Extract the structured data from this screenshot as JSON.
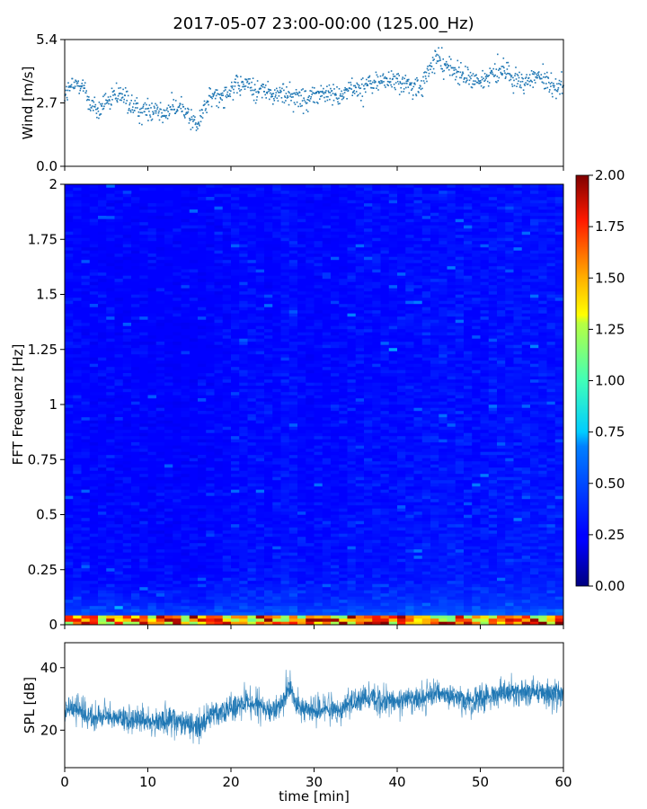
{
  "chart_data": {
    "title": "2017-05-07 23:00-00:00 (125.00_Hz)",
    "panels": [
      {
        "id": "wind",
        "type": "scatter",
        "ylabel": "Wind [m/s]",
        "ylim": [
          0.0,
          5.4
        ],
        "yticks": [
          "0.0",
          "2.7",
          "5.4"
        ],
        "xlim": [
          0,
          60
        ],
        "color": "#1f77b4",
        "trend": {
          "t": [
            0,
            1,
            2,
            3,
            4,
            5,
            6,
            7,
            8,
            9,
            10,
            11,
            12,
            13,
            14,
            15,
            16,
            17,
            18,
            19,
            20,
            21,
            22,
            23,
            24,
            25,
            26,
            27,
            28,
            29,
            30,
            31,
            32,
            33,
            34,
            35,
            36,
            37,
            38,
            39,
            40,
            41,
            42,
            43,
            44,
            45,
            46,
            47,
            48,
            49,
            50,
            51,
            52,
            53,
            54,
            55,
            56,
            57,
            58,
            59,
            60
          ],
          "v": [
            3.1,
            3.4,
            3.6,
            2.7,
            2.3,
            2.8,
            2.9,
            3.0,
            2.6,
            2.3,
            2.4,
            2.5,
            2.3,
            2.4,
            2.6,
            2.1,
            1.7,
            2.7,
            3.0,
            3.1,
            3.3,
            3.4,
            3.5,
            3.2,
            3.3,
            3.0,
            3.1,
            3.0,
            3.0,
            2.9,
            3.0,
            3.1,
            3.1,
            3.0,
            3.2,
            3.3,
            3.4,
            3.5,
            3.6,
            3.7,
            3.6,
            3.5,
            3.3,
            3.4,
            4.2,
            4.6,
            4.3,
            4.0,
            3.9,
            3.7,
            3.6,
            3.8,
            4.0,
            4.1,
            3.8,
            3.6,
            3.7,
            3.9,
            3.5,
            3.4,
            3.6
          ]
        }
      },
      {
        "id": "spectrogram",
        "type": "heatmap",
        "ylabel": "FFT Frequenz [Hz]",
        "ylim": [
          0,
          2
        ],
        "yticks": [
          "0",
          "0.25",
          "0.5",
          "0.75",
          "1",
          "1.25",
          "1.5",
          "1.75",
          "2"
        ],
        "xlim": [
          0,
          60
        ],
        "colormap": "jet",
        "colorbar": {
          "vmin": 0.0,
          "vmax": 2.0,
          "ticks": [
            "0.00",
            "0.25",
            "0.50",
            "0.75",
            "1.00",
            "1.25",
            "1.50",
            "1.75",
            "2.00"
          ]
        }
      },
      {
        "id": "spl",
        "type": "line",
        "ylabel": "SPL [dB]",
        "ylim": [
          8,
          48
        ],
        "yticks": [
          "20",
          "40"
        ],
        "xlim": [
          0,
          60
        ],
        "xlabel": "time [min]",
        "xticks": [
          "0",
          "10",
          "20",
          "30",
          "40",
          "50",
          "60"
        ],
        "color": "#1f77b4",
        "trend": {
          "t": [
            0,
            1,
            2,
            3,
            4,
            5,
            6,
            7,
            8,
            9,
            10,
            11,
            12,
            13,
            14,
            15,
            16,
            17,
            18,
            19,
            20,
            21,
            22,
            23,
            24,
            25,
            26,
            27,
            28,
            29,
            30,
            31,
            32,
            33,
            34,
            35,
            36,
            37,
            38,
            39,
            40,
            41,
            42,
            43,
            44,
            45,
            46,
            47,
            48,
            49,
            50,
            51,
            52,
            53,
            54,
            55,
            56,
            57,
            58,
            59,
            60
          ],
          "v": [
            26,
            27,
            26,
            24,
            24,
            25,
            24,
            24,
            23,
            23,
            23,
            22,
            23,
            23,
            22,
            22,
            21,
            23,
            25,
            26,
            27,
            28,
            29,
            28,
            27,
            26,
            28,
            34,
            28,
            26,
            26,
            27,
            27,
            26,
            28,
            29,
            30,
            30,
            29,
            29,
            29,
            30,
            30,
            30,
            31,
            32,
            31,
            31,
            30,
            30,
            30,
            31,
            32,
            32,
            32,
            32,
            32,
            33,
            32,
            32,
            32
          ]
        }
      }
    ]
  }
}
